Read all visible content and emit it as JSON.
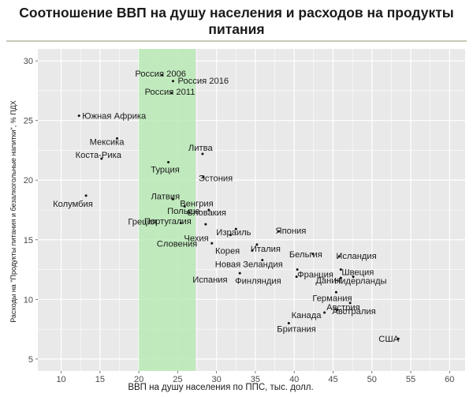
{
  "title_lines": [
    "Соотношение ВВП на душу населения и расходов на продукты",
    "питания"
  ],
  "chart_data": {
    "type": "scatter",
    "title": "Соотношение ВВП на душу населения и расходов на продукты питания",
    "xlabel": "ВВП на душу населения по ППС, тыс. долл.",
    "ylabel": "Расходы на \"Продукты питания и безалкогольные напитки\", % ПДХ",
    "xlim": [
      7,
      62
    ],
    "ylim": [
      4,
      31
    ],
    "x_ticks": [
      10,
      15,
      20,
      25,
      30,
      35,
      40,
      45,
      50,
      55,
      60
    ],
    "y_ticks": [
      5,
      10,
      15,
      20,
      25,
      30
    ],
    "grid": true,
    "highlight_band": {
      "x_from": 20,
      "x_to": 27.3,
      "color": "#b9eab5"
    },
    "points": [
      {
        "label": "Россия 2006",
        "x": 23.0,
        "y": 28.8
      },
      {
        "label": "Россия 2016",
        "x": 24.4,
        "y": 28.3
      },
      {
        "label": "Россия 2011",
        "x": 24.2,
        "y": 27.3
      },
      {
        "label": "Южная Африка",
        "x": 12.3,
        "y": 25.4
      },
      {
        "label": "Мексика",
        "x": 17.2,
        "y": 23.5
      },
      {
        "label": "Коста-Рика",
        "x": 15.2,
        "y": 21.8
      },
      {
        "label": "Литва",
        "x": 28.2,
        "y": 22.2
      },
      {
        "label": "Турция",
        "x": 23.8,
        "y": 21.5
      },
      {
        "label": "Эстония",
        "x": 28.3,
        "y": 20.3
      },
      {
        "label": "Колумбия",
        "x": 13.2,
        "y": 18.7
      },
      {
        "label": "Латвия",
        "x": 24.4,
        "y": 18.4
      },
      {
        "label": "Венгрия",
        "x": 25.9,
        "y": 17.8
      },
      {
        "label": "Польша",
        "x": 26.5,
        "y": 17.3
      },
      {
        "label": "Словакия",
        "x": 29.0,
        "y": 17.5
      },
      {
        "label": "Греция",
        "x": 25.4,
        "y": 16.4
      },
      {
        "label": "Португалия",
        "x": 28.6,
        "y": 16.3
      },
      {
        "label": "Чехия",
        "x": 31.8,
        "y": 15.4
      },
      {
        "label": "Израиль",
        "x": 32.5,
        "y": 15.9
      },
      {
        "label": "Япония",
        "x": 38.0,
        "y": 15.7
      },
      {
        "label": "Словения",
        "x": 29.4,
        "y": 14.7
      },
      {
        "label": "Италия",
        "x": 35.2,
        "y": 14.6
      },
      {
        "label": "Корея",
        "x": 34.6,
        "y": 14.1
      },
      {
        "label": "Бельгия",
        "x": 42.4,
        "y": 13.8
      },
      {
        "label": "Исландия",
        "x": 45.8,
        "y": 13.6
      },
      {
        "label": "Новая Зеландия",
        "x": 35.9,
        "y": 13.3
      },
      {
        "label": "Франция",
        "x": 40.4,
        "y": 12.5
      },
      {
        "label": "Швеция",
        "x": 46.0,
        "y": 12.5
      },
      {
        "label": "Испания",
        "x": 33.0,
        "y": 12.2
      },
      {
        "label": "Финляндия",
        "x": 40.3,
        "y": 11.9
      },
      {
        "label": "Дания",
        "x": 46.0,
        "y": 11.8
      },
      {
        "label": "Нидерланды",
        "x": 47.6,
        "y": 11.9
      },
      {
        "label": "Германия",
        "x": 45.4,
        "y": 10.6
      },
      {
        "label": "Австрия",
        "x": 47.2,
        "y": 9.7
      },
      {
        "label": "Канада",
        "x": 43.9,
        "y": 8.9
      },
      {
        "label": "Австралия",
        "x": 45.5,
        "y": 9.1
      },
      {
        "label": "Британия",
        "x": 39.3,
        "y": 8.0
      },
      {
        "label": "США",
        "x": 53.4,
        "y": 6.7
      }
    ]
  },
  "colors": {
    "panel_bg": "#e9e9e9",
    "grid": "#ffffff",
    "band": "#b9eab5",
    "point": "#111111",
    "text": "#1a1a1a"
  }
}
